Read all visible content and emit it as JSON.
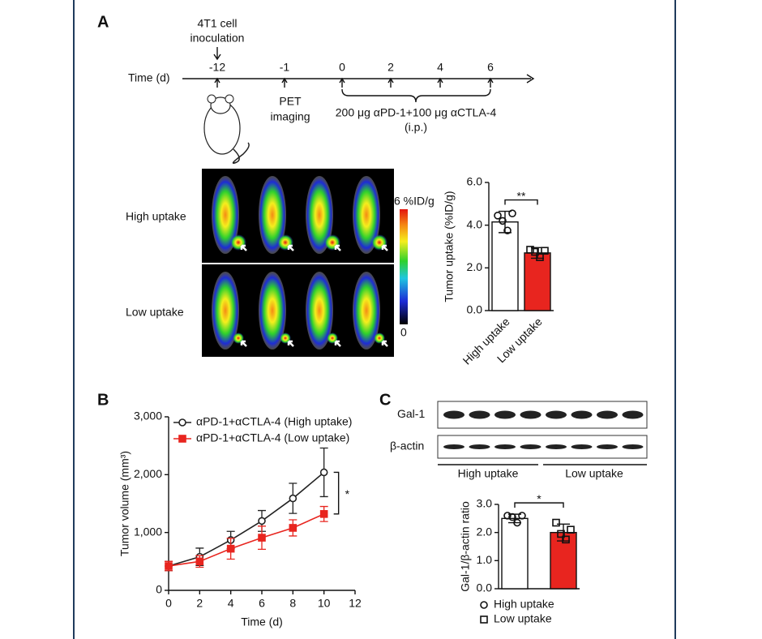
{
  "panel_labels": [
    "A",
    "B",
    "C"
  ],
  "timeline": {
    "axis_label": "Time (d)",
    "ticks": [
      -12,
      -1,
      0,
      2,
      4,
      6
    ],
    "inoculation": [
      "4T1 cell",
      "inoculation"
    ],
    "imaging": [
      "PET",
      "imaging"
    ],
    "treatment": [
      "200 μg αPD-1+100 μg αCTLA-4",
      "(i.p.)"
    ]
  },
  "pet": {
    "rows": [
      "High uptake",
      "Low uptake"
    ],
    "colorbar_max": "6 %ID/g",
    "colorbar_min": "0"
  },
  "western": {
    "bands": [
      "Gal-1",
      "β-actin"
    ],
    "groups": [
      "High uptake",
      "Low uptake"
    ]
  },
  "chart_data": [
    {
      "type": "bar",
      "ylabel": "Tumor uptake (%ID/g)",
      "categories": [
        "High uptake",
        "Low uptake"
      ],
      "values": [
        4.15,
        2.7
      ],
      "errors": [
        0.5,
        0.25
      ],
      "colors": [
        "#ffffff",
        "#e8251f"
      ],
      "points": [
        [
          4.45,
          4.2,
          3.75,
          4.55
        ],
        [
          2.85,
          2.75,
          2.5,
          2.8
        ]
      ],
      "markers": [
        "circle",
        "square"
      ],
      "ylim": [
        0,
        6
      ],
      "yticks": [
        {
          "value": 0,
          "label": "0.0"
        },
        {
          "value": 2,
          "label": "2.0"
        },
        {
          "value": 4,
          "label": "4.0"
        },
        {
          "value": 6,
          "label": "6.0"
        }
      ],
      "significance": "**"
    },
    {
      "type": "line",
      "xlabel": "Time (d)",
      "ylabel": "Tumor volume (mm³)",
      "x": [
        0,
        2,
        4,
        6,
        8,
        10
      ],
      "series": [
        {
          "name": "αPD-1+αCTLA-4 (High uptake)",
          "color": "#222222",
          "marker": "circle",
          "values": [
            420,
            580,
            870,
            1200,
            1590,
            2040
          ],
          "errors": [
            80,
            150,
            150,
            180,
            260,
            420
          ]
        },
        {
          "name": "αPD-1+αCTLA-4 (Low uptake)",
          "color": "#e8251f",
          "marker": "square",
          "values": [
            420,
            500,
            720,
            910,
            1080,
            1320
          ],
          "errors": [
            80,
            100,
            180,
            200,
            140,
            130
          ]
        }
      ],
      "xlim": [
        0,
        12
      ],
      "xticks": [
        0,
        2,
        4,
        6,
        8,
        10,
        12
      ],
      "ylim": [
        0,
        3000
      ],
      "yticks": [
        0,
        {
          "value": 1000,
          "label": "1,000"
        },
        {
          "value": 2000,
          "label": "2,000"
        },
        {
          "value": 3000,
          "label": "3,000"
        }
      ],
      "significance": "*"
    },
    {
      "type": "bar",
      "ylabel": "Gal-1/β-actin ratio",
      "categories": [
        "High uptake",
        "Low uptake"
      ],
      "values": [
        2.5,
        2.0
      ],
      "errors": [
        0.15,
        0.3
      ],
      "colors": [
        "#ffffff",
        "#e8251f"
      ],
      "points": [
        [
          2.6,
          2.55,
          2.35,
          2.6
        ],
        [
          2.35,
          1.95,
          1.75,
          2.1
        ]
      ],
      "markers": [
        "circle",
        "square"
      ],
      "ylim": [
        0,
        3
      ],
      "yticks": [
        {
          "value": 0,
          "label": "0.0"
        },
        {
          "value": 1,
          "label": "1.0"
        },
        {
          "value": 2,
          "label": "2.0"
        },
        {
          "value": 3,
          "label": "3.0"
        }
      ],
      "significance": "*",
      "legend_position": "bottom"
    }
  ]
}
